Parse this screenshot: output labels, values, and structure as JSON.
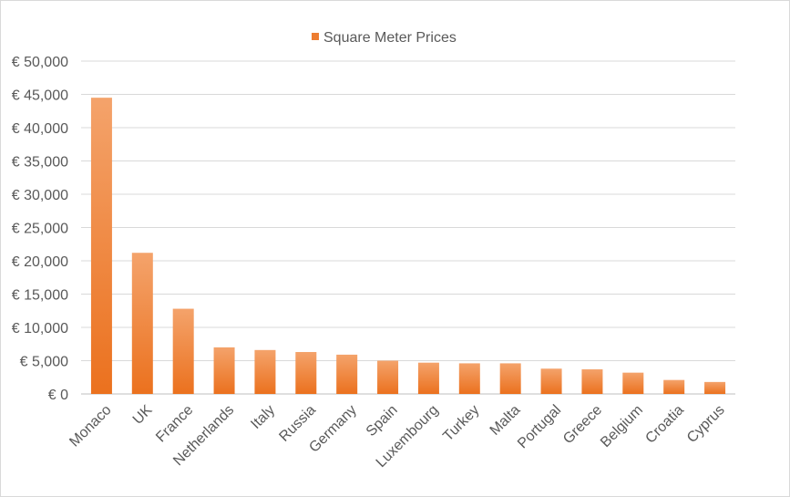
{
  "chart_data": {
    "type": "bar",
    "title": "",
    "xlabel": "",
    "ylabel": "",
    "legend": {
      "position": "top",
      "entries": [
        "Square Meter Prices"
      ]
    },
    "grid": true,
    "ylim": [
      0,
      50000
    ],
    "yticks": [
      0,
      5000,
      10000,
      15000,
      20000,
      25000,
      30000,
      35000,
      40000,
      45000,
      50000
    ],
    "ytick_labels": [
      "€ 0",
      "€ 5,000",
      "€ 10,000",
      "€ 15,000",
      "€ 20,000",
      "€ 25,000",
      "€ 30,000",
      "€ 35,000",
      "€ 40,000",
      "€ 45,000",
      "€ 50,000"
    ],
    "categories": [
      "Monaco",
      "UK",
      "France",
      "Netherlands",
      "Italy",
      "Russia",
      "Germany",
      "Spain",
      "Luxembourg",
      "Turkey",
      "Malta",
      "Portugal",
      "Greece",
      "Belgium",
      "Croatia",
      "Cyprus"
    ],
    "series": [
      {
        "name": "Square Meter Prices",
        "color": "#ED7D31",
        "values": [
          44500,
          21200,
          12800,
          7000,
          6600,
          6300,
          5900,
          5000,
          4700,
          4600,
          4600,
          3800,
          3700,
          3200,
          2100,
          1800
        ]
      }
    ]
  }
}
